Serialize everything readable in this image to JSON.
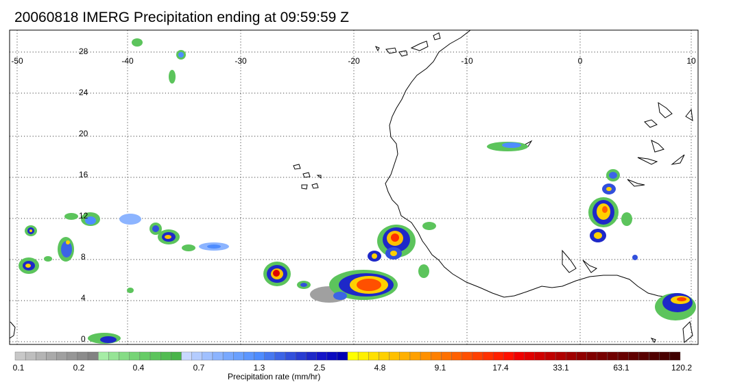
{
  "title": "20060818 IMERG Precipitation ending at 09:59:59 Z",
  "map": {
    "lon_labels": [
      "-50",
      "-40",
      "-30",
      "-20",
      "-10",
      "0",
      "10"
    ],
    "lat_labels": [
      "28",
      "24",
      "20",
      "16",
      "12",
      "8",
      "4",
      "0"
    ],
    "lon_range": [
      -50,
      10
    ],
    "lat_range": [
      -0.5,
      30
    ],
    "gridlines": "dotted"
  },
  "colorbar": {
    "title": "Precipitation rate (mm/hr)",
    "tick_labels": [
      "0.1",
      "0.2",
      "0.4",
      "0.7",
      "1.3",
      "2.5",
      "4.8",
      "9.1",
      "17.4",
      "33.1",
      "63.1",
      "120.2"
    ],
    "colors": [
      "#c8c8c8",
      "#bebebe",
      "#b4b4b4",
      "#aaaaaa",
      "#a0a0a0",
      "#969696",
      "#8c8c8c",
      "#828282",
      "#a6eda6",
      "#96e496",
      "#86dc86",
      "#76d476",
      "#66cc66",
      "#5cc45c",
      "#52bc52",
      "#48b448",
      "#c8d8ff",
      "#b4ccff",
      "#a0c0ff",
      "#8cb4ff",
      "#78a8ff",
      "#6aa0ff",
      "#5c96ff",
      "#4e8cff",
      "#4678f0",
      "#3c64e6",
      "#3250dc",
      "#283cd2",
      "#1e28c8",
      "#1414c8",
      "#0a0ac0",
      "#0000b4",
      "#ffff00",
      "#fff000",
      "#ffe000",
      "#ffd000",
      "#ffc000",
      "#ffb000",
      "#ffa000",
      "#ff9000",
      "#ff8000",
      "#ff7000",
      "#ff6000",
      "#ff5000",
      "#ff4000",
      "#ff3000",
      "#ff2000",
      "#ff1000",
      "#f00000",
      "#e00000",
      "#d00000",
      "#c00000",
      "#b00000",
      "#a00000",
      "#900000",
      "#800000",
      "#780000",
      "#700000",
      "#680000",
      "#600000",
      "#580000",
      "#500000",
      "#480000",
      "#400000"
    ]
  }
}
